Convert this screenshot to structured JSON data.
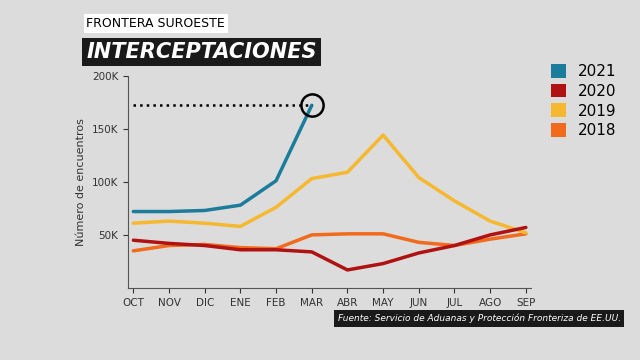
{
  "chart_data": {
    "type": "line",
    "subtitle": "FRONTERA SUROESTE",
    "title": "INTERCEPTACIONES",
    "y_label": "Número de encuentros",
    "source": "Fuente: Servicio de Aduanas y Protección Fronteriza de EE.UU.",
    "categories": [
      "OCT",
      "NOV",
      "DIC",
      "ENE",
      "FEB",
      "MAR",
      "ABR",
      "MAY",
      "JUN",
      "JUL",
      "AGO",
      "SEP"
    ],
    "series": [
      {
        "name": "2021",
        "color": "#1b7c9c",
        "values": [
          72000,
          72000,
          73000,
          78000,
          101000,
          172000,
          null,
          null,
          null,
          null,
          null,
          null
        ]
      },
      {
        "name": "2020",
        "color": "#b01212",
        "values": [
          45000,
          42000,
          40000,
          36000,
          36000,
          34000,
          17000,
          23000,
          33000,
          40000,
          50000,
          57000
        ]
      },
      {
        "name": "2019",
        "color": "#f5b82e",
        "values": [
          61000,
          63000,
          61000,
          58000,
          76000,
          103000,
          109000,
          144000,
          104000,
          82000,
          63000,
          52000
        ]
      },
      {
        "name": "2018",
        "color": "#f26a1b",
        "values": [
          35000,
          40000,
          41000,
          38000,
          37000,
          50000,
          51000,
          51000,
          43000,
          40000,
          46000,
          51000
        ]
      }
    ],
    "ylim": [
      0,
      200000
    ],
    "yticks": [
      {
        "value": 50000,
        "label": "50K"
      },
      {
        "value": 100000,
        "label": "100K"
      },
      {
        "value": 150000,
        "label": "150K"
      },
      {
        "value": 200000,
        "label": "200K"
      }
    ],
    "legend": "upper right",
    "grid": false
  }
}
